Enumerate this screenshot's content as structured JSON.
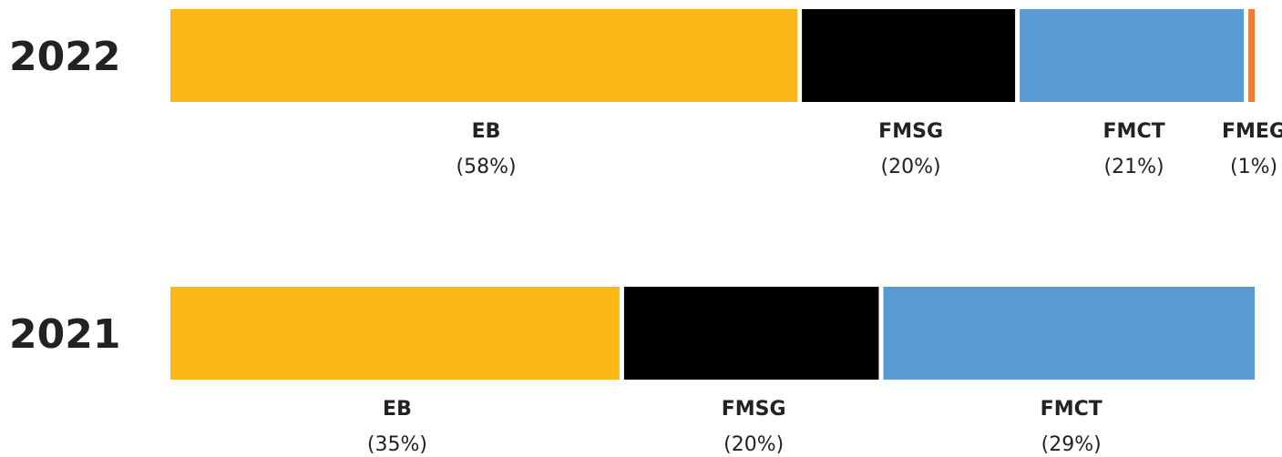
{
  "chart_data": {
    "type": "stacked_bar",
    "categories": [
      "2022",
      "2021"
    ],
    "series": [
      {
        "name": "EB",
        "color": "#fbb817",
        "values": [
          58,
          35
        ],
        "value_labels": [
          "(58%)",
          "(35%)"
        ]
      },
      {
        "name": "FMSG",
        "color": "#000000",
        "values": [
          20,
          20
        ],
        "value_labels": [
          "(20%)",
          "(20%)"
        ]
      },
      {
        "name": "FMCT",
        "color": "#5b9bd5",
        "values": [
          21,
          29
        ],
        "value_labels": [
          "(21%)",
          "(29%)"
        ]
      },
      {
        "name": "FMEG",
        "color": "#ed7d31",
        "values": [
          1,
          null
        ],
        "value_labels": [
          "(1%)",
          null
        ]
      }
    ]
  }
}
